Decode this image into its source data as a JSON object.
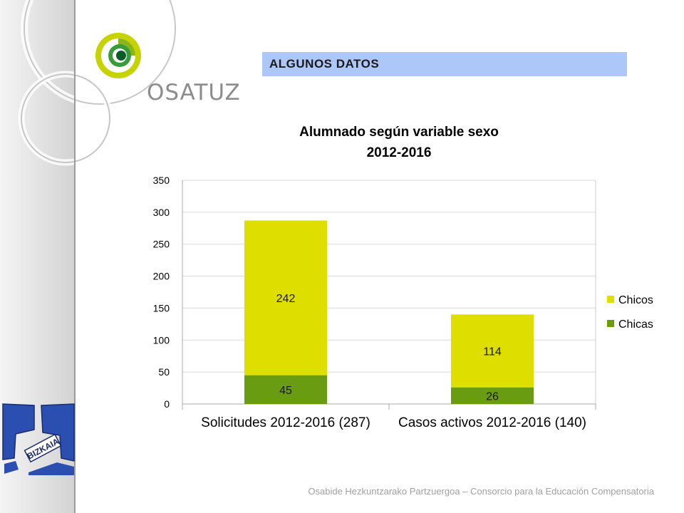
{
  "header": {
    "title": "ALGUNOS DATOS"
  },
  "branding": {
    "logo_text": "OSATUZ",
    "region_logo_text": "BIZKAIA"
  },
  "footer": {
    "text": "Osabide Hezkuntzarako Partzuergoa – Consorcio para la Educación Compensatoria"
  },
  "chart_data": {
    "type": "bar",
    "stacked": true,
    "title": "Alumnado según variable sexo",
    "subtitle": "2012-2016",
    "categories": [
      "Solicitudes 2012-2016 (287)",
      "Casos activos 2012-2016 (140)"
    ],
    "series": [
      {
        "name": "Chicas",
        "values": [
          45,
          26
        ],
        "color": "#6a9c12"
      },
      {
        "name": "Chicos",
        "values": [
          242,
          114
        ],
        "color": "#dede00"
      }
    ],
    "ylim": [
      0,
      350
    ],
    "yticks": [
      0,
      50,
      100,
      150,
      200,
      250,
      300,
      350
    ],
    "grid": true,
    "legend_position": "right",
    "data_labels": true
  }
}
